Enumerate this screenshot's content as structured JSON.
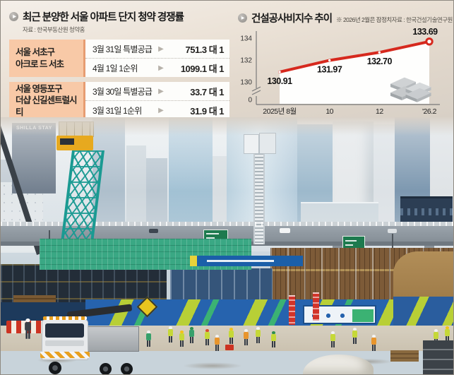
{
  "left_panel": {
    "title": "최근 분양한 서울 아파트 단지 청약 경쟁률",
    "source": "자료 : 한국부동산원 청약홈",
    "groups": [
      {
        "name_line1": "서울 서초구",
        "name_line2": "아크로 드 서초",
        "rows": [
          {
            "label": "3월 31일 특별공급",
            "value": "751.3 대 1"
          },
          {
            "label": "4월 1일 1순위",
            "value": "1099.1 대 1"
          }
        ]
      },
      {
        "name_line1": "서울 영등포구",
        "name_line2": "더샵 신길센트럴시티",
        "rows": [
          {
            "label": "3월 30일 특별공급",
            "value": "33.7 대 1"
          },
          {
            "label": "3월 31일 1순위",
            "value": "31.9 대 1"
          }
        ]
      }
    ]
  },
  "right_panel": {
    "title": "건설공사비지수 추이",
    "note": "※ 2026년 2월은 잠정치",
    "source": "자료 : 한국건설기술연구원"
  },
  "chart_data": {
    "type": "line",
    "title": "건설공사비지수 추이",
    "x": [
      "2025년 8월",
      "10",
      "12",
      "'26.2"
    ],
    "values": [
      130.91,
      131.97,
      132.7,
      133.69
    ],
    "point_labels": [
      "130.91",
      "131.97",
      "132.70",
      "133.69"
    ],
    "yticks": [
      134,
      132,
      130,
      0
    ],
    "axis_break": true,
    "ylim_visible": [
      130,
      134
    ],
    "line_color": "#d6291e",
    "last_point_open": true,
    "grid": false,
    "legend": "none"
  },
  "photo": {
    "shilla_stay_sign": "SHILLA STAY"
  },
  "icons": {
    "section_bullet": "▶",
    "row_arrow": "▶"
  },
  "colors": {
    "accent_red": "#d6291e",
    "table_salmon": "#f8c9a7",
    "table_salmon_border": "#e79d72",
    "fence_blue": "#2663ae",
    "hiviz_green": "#b8cf36",
    "crane_teal": "#1a9a92"
  }
}
